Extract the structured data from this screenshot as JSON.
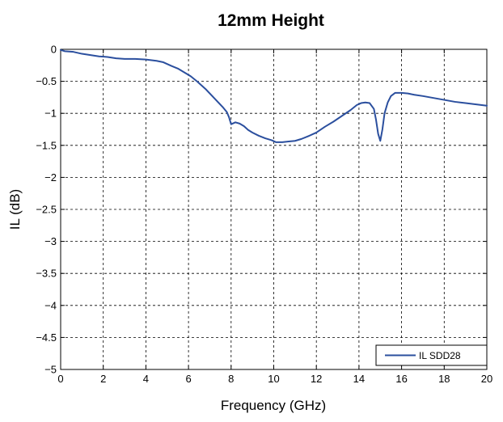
{
  "chart_data": {
    "type": "line",
    "title": "12mm Height",
    "xlabel": "Frequency (GHz)",
    "ylabel": "IL (dB)",
    "xlim": [
      0,
      20
    ],
    "ylim": [
      -5,
      0
    ],
    "xticks": [
      0,
      2,
      4,
      6,
      8,
      10,
      12,
      14,
      16,
      18,
      20
    ],
    "yticks": [
      0,
      -0.5,
      -1,
      -1.5,
      -2,
      -2.5,
      -3,
      -3.5,
      -4,
      -4.5,
      -5
    ],
    "xtick_labels": [
      "0",
      "2",
      "4",
      "6",
      "8",
      "10",
      "12",
      "14",
      "16",
      "18",
      "20"
    ],
    "ytick_labels": [
      "0",
      "−0.5",
      "−1",
      "−1.5",
      "−2",
      "−2.5",
      "−3",
      "−3.5",
      "−4",
      "−4.5",
      "−5"
    ],
    "grid": true,
    "legend_position": "bottom-right",
    "series": [
      {
        "name": "IL  SDD28",
        "color": "#2b4f9e",
        "x": [
          0,
          0.2,
          0.6,
          1.0,
          1.4,
          1.8,
          2.2,
          2.6,
          3.0,
          3.5,
          4.0,
          4.5,
          4.8,
          5.2,
          5.5,
          5.8,
          6.1,
          6.4,
          6.8,
          7.2,
          7.6,
          7.8,
          7.9,
          8.0,
          8.2,
          8.4,
          8.6,
          8.8,
          9.0,
          9.3,
          9.6,
          9.9,
          10.1,
          10.4,
          10.7,
          11.0,
          11.3,
          11.6,
          12.0,
          12.4,
          12.8,
          13.2,
          13.6,
          13.9,
          14.1,
          14.3,
          14.5,
          14.7,
          14.8,
          14.9,
          15.0,
          15.1,
          15.2,
          15.35,
          15.5,
          15.7,
          16.0,
          16.3,
          16.6,
          17.0,
          17.5,
          18.0,
          18.5,
          19.0,
          19.5,
          20.0
        ],
        "y": [
          -0.01,
          -0.03,
          -0.04,
          -0.07,
          -0.09,
          -0.11,
          -0.12,
          -0.14,
          -0.15,
          -0.15,
          -0.16,
          -0.18,
          -0.2,
          -0.26,
          -0.3,
          -0.36,
          -0.42,
          -0.5,
          -0.62,
          -0.76,
          -0.9,
          -0.98,
          -1.06,
          -1.17,
          -1.14,
          -1.16,
          -1.2,
          -1.26,
          -1.3,
          -1.35,
          -1.39,
          -1.42,
          -1.45,
          -1.45,
          -1.44,
          -1.43,
          -1.4,
          -1.36,
          -1.3,
          -1.21,
          -1.13,
          -1.04,
          -0.95,
          -0.87,
          -0.84,
          -0.83,
          -0.84,
          -0.93,
          -1.1,
          -1.32,
          -1.43,
          -1.25,
          -1.0,
          -0.83,
          -0.73,
          -0.68,
          -0.68,
          -0.69,
          -0.71,
          -0.73,
          -0.76,
          -0.79,
          -0.82,
          -0.84,
          -0.86,
          -0.88
        ]
      }
    ]
  }
}
